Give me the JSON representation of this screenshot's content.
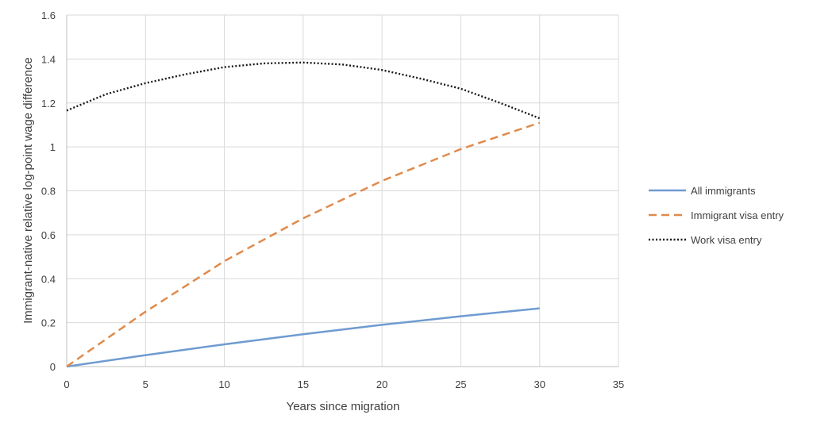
{
  "chart_data": {
    "type": "line",
    "title": "",
    "xlabel": "Years since migration",
    "ylabel": "Immigrant-native relative log-point wage difference",
    "xlim": [
      0,
      35
    ],
    "ylim": [
      0,
      1.6
    ],
    "xticks": [
      0,
      5,
      10,
      15,
      20,
      25,
      30,
      35
    ],
    "yticks": [
      0,
      0.2,
      0.4,
      0.6,
      0.8,
      1,
      1.2,
      1.4,
      1.6
    ],
    "xtick_labels": [
      "0",
      "5",
      "10",
      "15",
      "20",
      "25",
      "30",
      "35"
    ],
    "ytick_labels": [
      "0",
      "0.2",
      "0.4",
      "0.6",
      "0.8",
      "1",
      "1.2",
      "1.4",
      "1.6"
    ],
    "grid": true,
    "legend_position": "right",
    "series": [
      {
        "name": "All immigrants",
        "color": "#6f9bd1",
        "style": "solid",
        "x": [
          0,
          5,
          10,
          15,
          20,
          25,
          30
        ],
        "y": [
          0,
          0.052,
          0.101,
          0.147,
          0.19,
          0.229,
          0.265
        ]
      },
      {
        "name": "Immigrant visa entry",
        "color": "#e08a4b",
        "style": "dashed",
        "x": [
          0,
          5,
          10,
          15,
          20,
          25,
          30
        ],
        "y": [
          0,
          0.25,
          0.48,
          0.675,
          0.845,
          0.99,
          1.11
        ]
      },
      {
        "name": "Work visa entry",
        "color": "#1a1a1a",
        "style": "dotted",
        "x": [
          0,
          2.5,
          5,
          7.5,
          10,
          12.5,
          15,
          17.5,
          20,
          22.5,
          25,
          27.5,
          30
        ],
        "y": [
          1.165,
          1.24,
          1.29,
          1.33,
          1.363,
          1.38,
          1.384,
          1.375,
          1.35,
          1.31,
          1.265,
          1.2,
          1.13
        ]
      }
    ]
  }
}
